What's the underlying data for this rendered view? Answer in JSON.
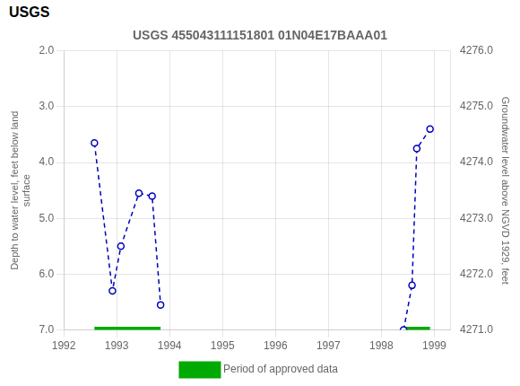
{
  "chart_data": {
    "type": "line",
    "title": "USGS 455043111151801 01N04E17BAAA01",
    "annotations": [
      {
        "text": "USGS"
      }
    ],
    "y_label": "Depth to water level, feet below land\nsurface",
    "y2_label": "Groundwater level above NGVD 1929, feet",
    "xlim": [
      1992.0,
      1999.3
    ],
    "xticks": [
      1992,
      1993,
      1994,
      1995,
      1996,
      1997,
      1998,
      1999
    ],
    "ylim": [
      7.0,
      2.0
    ],
    "yticks": [
      {
        "value": 2,
        "label": "2.0"
      },
      {
        "value": 3,
        "label": "3.0"
      },
      {
        "value": 4,
        "label": "4.0"
      },
      {
        "value": 5,
        "label": "5.0"
      },
      {
        "value": 6,
        "label": "6.0"
      },
      {
        "value": 7,
        "label": "7.0"
      }
    ],
    "y2lim": [
      4271.0,
      4276.0
    ],
    "y2ticks": [
      {
        "value": 4271,
        "label": "4271.0"
      },
      {
        "value": 4272,
        "label": "4272.0"
      },
      {
        "value": 4273,
        "label": "4273.0"
      },
      {
        "value": 4274,
        "label": "4274.0"
      },
      {
        "value": 4275,
        "label": "4275.0"
      },
      {
        "value": 4276,
        "label": "4276.0"
      }
    ],
    "grid": true,
    "legend": "bottom",
    "series": [
      {
        "x": [
          1992.58,
          1992.92,
          1993.08,
          1993.42,
          1993.67,
          1993.83
        ],
        "values": [
          3.65,
          6.3,
          5.5,
          4.55,
          4.6,
          6.55
        ],
        "color": "#0000bb",
        "marker": "circle",
        "line_style": "dashed"
      },
      {
        "x": [
          1998.42,
          1998.58,
          1998.67,
          1998.92
        ],
        "values": [
          7.0,
          6.2,
          3.75,
          3.4
        ],
        "color": "#0000bb",
        "marker": "circle",
        "line_style": "dashed"
      },
      {
        "name": "Period of approved data",
        "type": "interval",
        "x0": [
          1992.58,
          1998.42
        ],
        "x1": [
          1993.83,
          1998.92
        ],
        "values": [
          7.0,
          7.0
        ],
        "color": "#00aa00"
      }
    ]
  }
}
